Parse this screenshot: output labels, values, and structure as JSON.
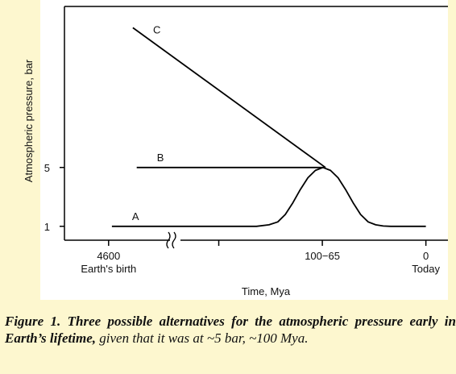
{
  "chart_data": {
    "type": "line",
    "ylabel": "Atmospheric pressure, bar",
    "xlabel": "Time, Mya",
    "xlim": [
      5000,
      -15
    ],
    "xbreak": [
      4000,
      200
    ],
    "ylim": [
      0,
      16
    ],
    "yticks": [
      1,
      5
    ],
    "xticks": [
      {
        "value": 4600,
        "label": "4600"
      },
      {
        "value": 82.5,
        "label": "100−65"
      },
      {
        "value": 0,
        "label": "0"
      }
    ],
    "xtick_sublabels": [
      "Earth's birth",
      null,
      "Today"
    ],
    "xticks_unlabeled": [
      165
    ],
    "series": [
      {
        "name": "A",
        "color": "#000000",
        "x": [
          4570,
          135,
          125,
          118,
          112,
          106,
          100,
          94,
          88,
          82,
          76,
          70,
          64,
          58,
          52,
          46,
          40,
          34,
          28,
          0
        ],
        "values": [
          1,
          1,
          1.1,
          1.3,
          1.8,
          2.6,
          3.5,
          4.3,
          4.8,
          5,
          4.8,
          4.3,
          3.5,
          2.6,
          1.8,
          1.3,
          1.1,
          1.02,
          1,
          1
        ]
      },
      {
        "name": "B",
        "color": "#000000",
        "x": [
          4345,
          80
        ],
        "values": [
          5,
          5
        ]
      },
      {
        "name": "C",
        "color": "#000000",
        "x": [
          4380,
          80
        ],
        "values": [
          14.5,
          5
        ]
      }
    ]
  },
  "caption": {
    "bold": "Figure 1. Three possible alternatives for the atmospheric pressure early in Earth’s lifetime,",
    "rest": "given that it was at ~5 bar, ~100 Mya."
  }
}
